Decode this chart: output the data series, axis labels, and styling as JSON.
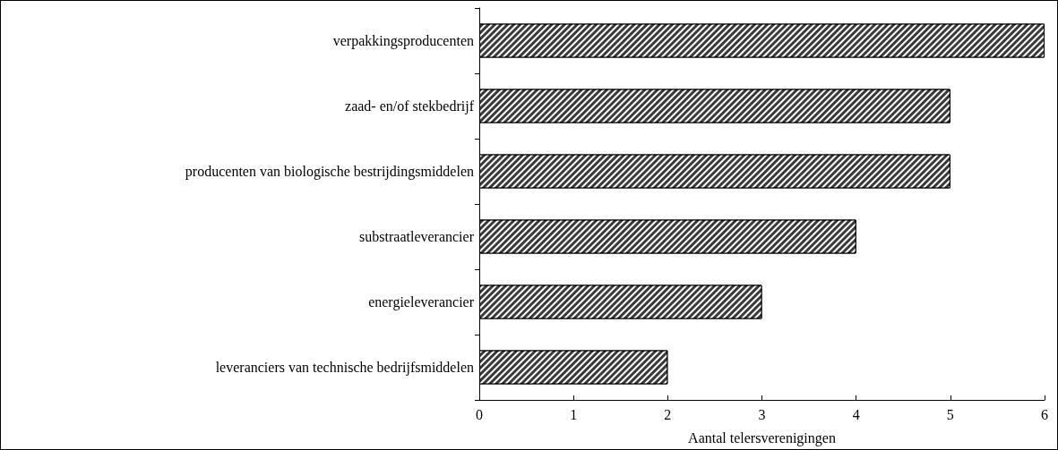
{
  "chart_data": {
    "type": "bar",
    "orientation": "horizontal",
    "categories": [
      "verpakkingsproducenten",
      "zaad- en/of stekbedrijf",
      "producenten van biologische bestrijdingsmiddelen",
      "substraatleverancier",
      "energieleverancier",
      "leveranciers van technische bedrijfsmiddelen"
    ],
    "values": [
      6,
      5,
      5,
      4,
      3,
      2
    ],
    "color": "#3a3a3a",
    "xlim": [
      0,
      6
    ],
    "xticks": [
      0,
      1,
      2,
      3,
      4,
      5,
      6
    ],
    "xlabel": "Aantal telersverenigingen"
  }
}
